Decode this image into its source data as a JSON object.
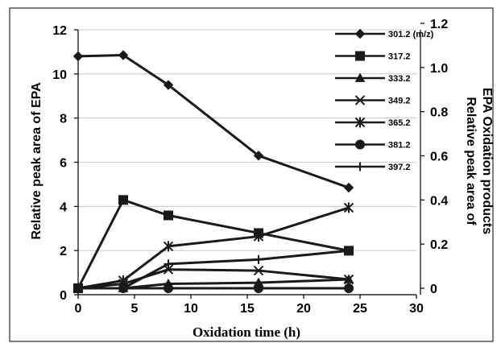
{
  "chart_data": {
    "type": "line",
    "xlabel": "Oxidation time (h)",
    "ylabel_left": "Relative peak area of EPA",
    "ylabel_right": "Relative peak area of EPA Oxidation products",
    "xlim": [
      0,
      30
    ],
    "ylim_left": [
      0,
      12
    ],
    "ylim_right": [
      0,
      1.2
    ],
    "x_ticks": [
      "0",
      "5",
      "10",
      "15",
      "20",
      "25",
      "30"
    ],
    "y_left_ticks": [
      "0",
      "2",
      "4",
      "6",
      "8",
      "10",
      "12"
    ],
    "y_right_ticks": [
      "0",
      "0.2",
      "0.4",
      "0.6",
      "0.8",
      "1.0",
      "1.2"
    ],
    "grid": "horizontal",
    "legend_position": "right",
    "series": [
      {
        "name": "301.2 (m/z)",
        "marker": "diamond",
        "axis": "left",
        "x": [
          0,
          4,
          8,
          16,
          24
        ],
        "y": [
          10.8,
          10.85,
          9.5,
          6.3,
          4.85
        ]
      },
      {
        "name": "317.2",
        "marker": "square",
        "axis": "right",
        "x": [
          0,
          4,
          8,
          16,
          24
        ],
        "y": [
          0,
          0.4,
          0.33,
          0.25,
          0.17
        ]
      },
      {
        "name": "333.2",
        "marker": "triangle",
        "axis": "right",
        "x": [
          0,
          4,
          8,
          16,
          24
        ],
        "y": [
          0,
          0,
          0.02,
          0.025,
          0.04
        ]
      },
      {
        "name": "349.2",
        "marker": "x",
        "axis": "right",
        "x": [
          0,
          4,
          8,
          16,
          24
        ],
        "y": [
          0,
          0.02,
          0.085,
          0.08,
          0.04
        ]
      },
      {
        "name": "365.2",
        "marker": "asterisk",
        "axis": "right",
        "x": [
          0,
          4,
          8,
          16,
          24
        ],
        "y": [
          0,
          0.035,
          0.19,
          0.235,
          0.365
        ]
      },
      {
        "name": "381.2",
        "marker": "circle",
        "axis": "right",
        "x": [
          0,
          4,
          8,
          16,
          24
        ],
        "y": [
          0,
          0,
          0,
          0,
          0
        ]
      },
      {
        "name": "397.2",
        "marker": "plus",
        "axis": "right",
        "x": [
          0,
          4,
          8,
          16,
          24
        ],
        "y": [
          0,
          0,
          0.11,
          0.13,
          0.17
        ]
      }
    ]
  }
}
